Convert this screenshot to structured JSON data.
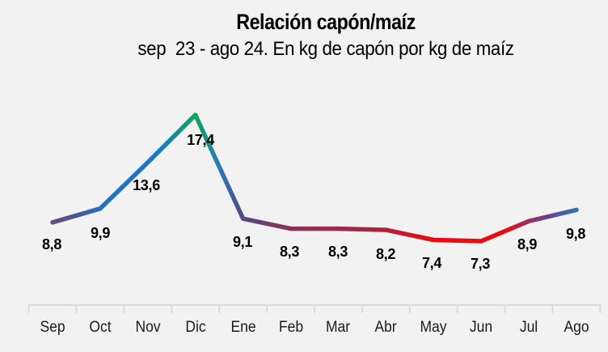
{
  "header": {
    "title": "Relación capón/maíz",
    "subtitle": "sep  23 - ago 24. En kg de capón por kg de maíz"
  },
  "colors": {
    "background": "#f2f2f2",
    "axis": "#d9d9d9",
    "data_label_text": "#000000",
    "month_label_text": "#1a1a1a"
  },
  "chart_data": {
    "type": "line",
    "title": "Relación capón/maíz",
    "subtitle": "sep  23 - ago 24. En kg de capón por kg de maíz",
    "categories": [
      "Sep",
      "Oct",
      "Nov",
      "Dic",
      "Ene",
      "Feb",
      "Mar",
      "Abr",
      "May",
      "Jun",
      "Jul",
      "Ago"
    ],
    "values": [
      8.8,
      9.9,
      13.6,
      17.4,
      9.1,
      8.3,
      8.3,
      8.2,
      7.4,
      7.3,
      8.9,
      9.8
    ],
    "value_labels": [
      "8,8",
      "9,9",
      "13,6",
      "17,4",
      "9,1",
      "8,3",
      "8,3",
      "8,2",
      "7,4",
      "7,3",
      "8,9",
      "9,8"
    ],
    "xlabel": "",
    "ylabel": "",
    "ylim": [
      7.3,
      17.4
    ],
    "grid": false,
    "legend": false,
    "y_axis_visible": false,
    "line_style": "multicolor-gradient",
    "gradient_stops": [
      {
        "offset": 0.0,
        "color": "#6e4a7a"
      },
      {
        "offset": 0.05,
        "color": "#47589a"
      },
      {
        "offset": 0.091,
        "color": "#2470bb"
      },
      {
        "offset": 0.2,
        "color": "#1878c8"
      },
      {
        "offset": 0.273,
        "color": "#11a45c"
      },
      {
        "offset": 0.318,
        "color": "#2d78bd"
      },
      {
        "offset": 0.364,
        "color": "#534a7e"
      },
      {
        "offset": 0.455,
        "color": "#8c3255"
      },
      {
        "offset": 0.59,
        "color": "#9e2a4b"
      },
      {
        "offset": 0.66,
        "color": "#c31a2e"
      },
      {
        "offset": 0.727,
        "color": "#ec0a11"
      },
      {
        "offset": 0.86,
        "color": "#ea0b14"
      },
      {
        "offset": 0.909,
        "color": "#9e2d5c"
      },
      {
        "offset": 0.955,
        "color": "#5c4b94"
      },
      {
        "offset": 1.0,
        "color": "#2e75b6"
      }
    ]
  }
}
